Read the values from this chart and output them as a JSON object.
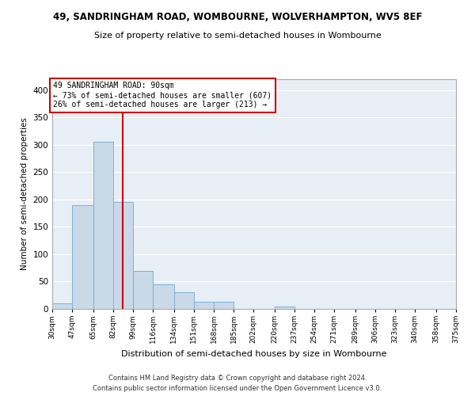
{
  "title1": "49, SANDRINGHAM ROAD, WOMBOURNE, WOLVERHAMPTON, WV5 8EF",
  "title2": "Size of property relative to semi-detached houses in Wombourne",
  "xlabel": "Distribution of semi-detached houses by size in Wombourne",
  "ylabel": "Number of semi-detached properties",
  "footer1": "Contains HM Land Registry data © Crown copyright and database right 2024.",
  "footer2": "Contains public sector information licensed under the Open Government Licence v3.0.",
  "property_size": 90,
  "annotation_line1": "49 SANDRINGHAM ROAD: 90sqm",
  "annotation_line2": "← 73% of semi-detached houses are smaller (607)",
  "annotation_line3": "26% of semi-detached houses are larger (213) →",
  "bar_color": "#c9d9e8",
  "bar_edge_color": "#7fafd4",
  "vline_color": "#cc0000",
  "annotation_box_color": "#cc0000",
  "background_color": "#e8eef5",
  "ylim": [
    0,
    420
  ],
  "yticks": [
    0,
    50,
    100,
    150,
    200,
    250,
    300,
    350,
    400
  ],
  "bin_labels": [
    "30sqm",
    "47sqm",
    "65sqm",
    "82sqm",
    "99sqm",
    "116sqm",
    "134sqm",
    "151sqm",
    "168sqm",
    "185sqm",
    "202sqm",
    "220sqm",
    "237sqm",
    "254sqm",
    "271sqm",
    "289sqm",
    "306sqm",
    "323sqm",
    "340sqm",
    "358sqm",
    "375sqm"
  ],
  "bin_edges": [
    30,
    47,
    65,
    82,
    99,
    116,
    134,
    151,
    168,
    185,
    202,
    220,
    237,
    254,
    271,
    289,
    306,
    323,
    340,
    358,
    375
  ],
  "bar_heights": [
    10,
    190,
    305,
    195,
    70,
    45,
    30,
    13,
    13,
    0,
    0,
    5,
    0,
    0,
    0,
    0,
    0,
    0,
    0,
    0
  ],
  "figwidth": 6.0,
  "figheight": 5.0,
  "dpi": 100
}
